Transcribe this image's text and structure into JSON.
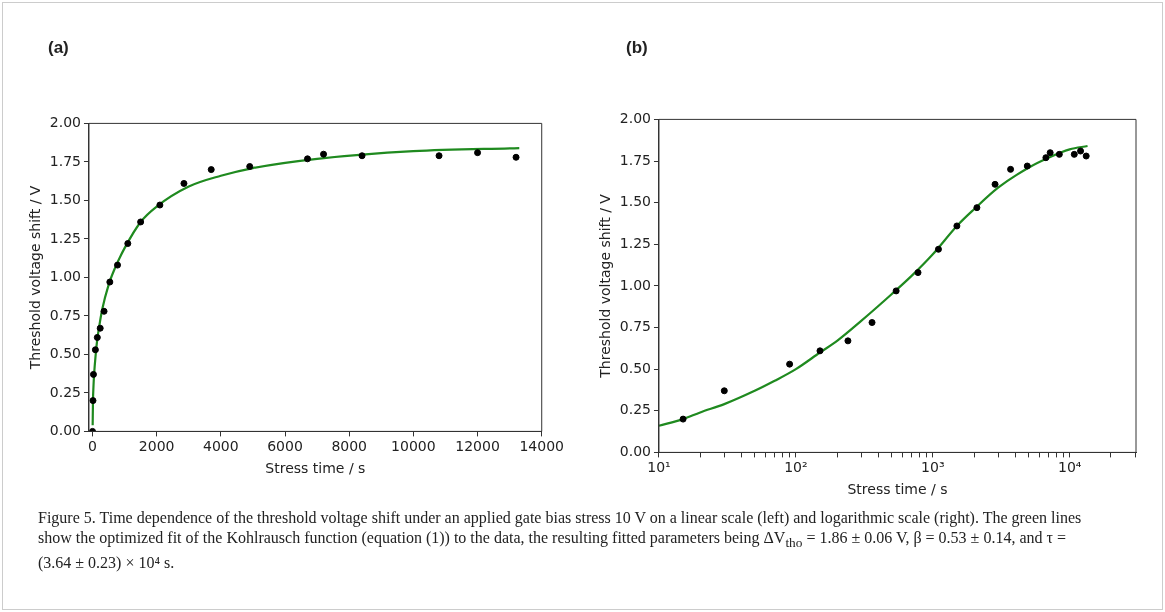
{
  "chart_data": [
    {
      "type": "scatter",
      "title": "(a)",
      "xlabel": "Stress time / s",
      "ylabel": "Threshold voltage shift / V",
      "xlim": [
        -110,
        14000
      ],
      "xticks": [
        0,
        2000,
        4000,
        6000,
        8000,
        10000,
        12000,
        14000
      ],
      "ylim": [
        0,
        2
      ],
      "yticks": [
        {
          "value": 0,
          "label": "0.00"
        },
        {
          "value": 0.25,
          "label": "0.25"
        },
        {
          "value": 0.5,
          "label": "0.50"
        },
        {
          "value": 0.75,
          "label": "0.75"
        },
        {
          "value": 1,
          "label": "1.00"
        },
        {
          "value": 1.25,
          "label": "1.25"
        },
        {
          "value": 1.5,
          "label": "1.50"
        },
        {
          "value": 1.75,
          "label": "1.75"
        },
        {
          "value": 2,
          "label": "2.00"
        }
      ],
      "grid": false,
      "legend": false,
      "series": [
        {
          "type": "scatter",
          "marker": "circle",
          "color": "#000000",
          "x": [
            0,
            15,
            30,
            90,
            150,
            240,
            360,
            540,
            780,
            1100,
            1500,
            2100,
            2850,
            3700,
            4900,
            6700,
            7200,
            8400,
            10800,
            12000,
            13200
          ],
          "values": [
            0,
            0.2,
            0.37,
            0.53,
            0.61,
            0.67,
            0.78,
            0.97,
            1.08,
            1.22,
            1.36,
            1.47,
            1.61,
            1.7,
            1.72,
            1.77,
            1.8,
            1.79,
            1.79,
            1.81,
            1.78
          ]
        },
        {
          "type": "line",
          "marker": "none",
          "line_style": "solid",
          "color": "#1f8a1f",
          "x": [
            5,
            15,
            30,
            50,
            100,
            150,
            200,
            300,
            500,
            700,
            1000,
            1500,
            2000,
            3000,
            4000,
            5000,
            7000,
            10000,
            13300
          ],
          "values": [
            0.04,
            0.2,
            0.29,
            0.37,
            0.5,
            0.6,
            0.67,
            0.79,
            0.95,
            1.06,
            1.19,
            1.36,
            1.46,
            1.59,
            1.66,
            1.71,
            1.77,
            1.82,
            1.84
          ]
        }
      ],
      "annotations": [
        "Figure 5. Time dependence of the threshold voltage shift under an applied gate bias stress 10 V on a linear scale (left) and logarithmic scale (right). The green lines show the optimized fit of the Kohlrausch function (equation (1)) to the data, the resulting fitted parameters being ΔV$_{tho}$ = 1.86 ± 0.06 V, β = 0.53 ± 0.14, and τ = (3.64 ± 0.23) × 10⁴ s."
      ]
    },
    {
      "type": "scatter",
      "title": "(b)",
      "xlabel": "Stress time / s",
      "ylabel": "Threshold voltage shift / V",
      "log": "x",
      "xlim": [
        10,
        30500
      ],
      "xticks": [
        {
          "value": 10,
          "label": "10¹"
        },
        {
          "value": 20,
          "label": null
        },
        {
          "value": 30,
          "label": null
        },
        {
          "value": 40,
          "label": null
        },
        {
          "value": 50,
          "label": null
        },
        {
          "value": 60,
          "label": null
        },
        {
          "value": 70,
          "label": null
        },
        {
          "value": 80,
          "label": null
        },
        {
          "value": 90,
          "label": null
        },
        {
          "value": 100,
          "label": "10²"
        },
        {
          "value": 200,
          "label": null
        },
        {
          "value": 300,
          "label": null
        },
        {
          "value": 400,
          "label": null
        },
        {
          "value": 500,
          "label": null
        },
        {
          "value": 600,
          "label": null
        },
        {
          "value": 700,
          "label": null
        },
        {
          "value": 800,
          "label": null
        },
        {
          "value": 900,
          "label": null
        },
        {
          "value": 1000,
          "label": "10³"
        },
        {
          "value": 2000,
          "label": null
        },
        {
          "value": 3000,
          "label": null
        },
        {
          "value": 4000,
          "label": null
        },
        {
          "value": 5000,
          "label": null
        },
        {
          "value": 6000,
          "label": null
        },
        {
          "value": 7000,
          "label": null
        },
        {
          "value": 8000,
          "label": null
        },
        {
          "value": 9000,
          "label": null
        },
        {
          "value": 10000,
          "label": "10⁴"
        },
        {
          "value": 20000,
          "label": null
        },
        {
          "value": 30000,
          "label": null
        }
      ],
      "ylim": [
        0,
        2
      ],
      "yticks": [
        {
          "value": 0,
          "label": "0.00"
        },
        {
          "value": 0.25,
          "label": "0.25"
        },
        {
          "value": 0.5,
          "label": "0.50"
        },
        {
          "value": 0.75,
          "label": "0.75"
        },
        {
          "value": 1,
          "label": "1.00"
        },
        {
          "value": 1.25,
          "label": "1.25"
        },
        {
          "value": 1.5,
          "label": "1.50"
        },
        {
          "value": 1.75,
          "label": "1.75"
        },
        {
          "value": 2,
          "label": "2.00"
        }
      ],
      "grid": false,
      "legend": false,
      "series": [
        {
          "type": "scatter",
          "marker": "circle",
          "color": "#000000",
          "x": [
            15,
            30,
            90,
            150,
            240,
            360,
            540,
            780,
            1100,
            1500,
            2100,
            2850,
            3700,
            4900,
            6700,
            7200,
            8400,
            10800,
            12000,
            13200
          ],
          "values": [
            0.2,
            0.37,
            0.53,
            0.61,
            0.67,
            0.78,
            0.97,
            1.08,
            1.22,
            1.36,
            1.47,
            1.61,
            1.7,
            1.72,
            1.77,
            1.8,
            1.79,
            1.79,
            1.81,
            1.78
          ]
        },
        {
          "type": "line",
          "marker": "none",
          "line_style": "solid",
          "color": "#1f8a1f",
          "x": [
            10,
            15,
            20,
            30,
            50,
            70,
            100,
            150,
            200,
            300,
            500,
            700,
            1000,
            1500,
            2000,
            3000,
            5000,
            7000,
            10000,
            13500
          ],
          "values": [
            0.16,
            0.2,
            0.24,
            0.29,
            0.37,
            0.43,
            0.5,
            0.6,
            0.67,
            0.79,
            0.95,
            1.06,
            1.19,
            1.36,
            1.46,
            1.59,
            1.71,
            1.77,
            1.82,
            1.84
          ]
        }
      ]
    }
  ]
}
